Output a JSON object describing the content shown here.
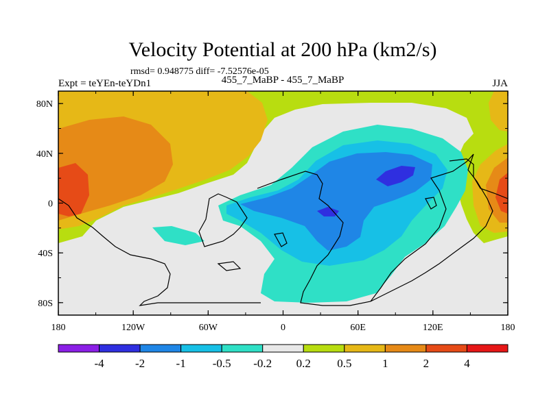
{
  "chart_data": {
    "type": "heatmap",
    "title": "Velocity Potential at 200 hPa (km2/s)",
    "stats_line": "rmsd= 0.948775  diff= -7.52576e-05",
    "left_label": "Expt = teYEn-teYDn1",
    "center_label": "455_7_MaBP - 455_7_MaBP",
    "right_label": "JJA",
    "x_ticks": [
      "180",
      "120W",
      "60W",
      "0",
      "60E",
      "120E",
      "180"
    ],
    "y_ticks": [
      "80N",
      "40N",
      "0",
      "40S",
      "80S"
    ],
    "xlim": [
      -180,
      180
    ],
    "ylim": [
      -90,
      90
    ],
    "colorbar": {
      "levels": [
        "-4",
        "-2",
        "-1",
        "-0.5",
        "-0.2",
        "0.2",
        "0.5",
        "1",
        "2",
        "4"
      ],
      "colors": [
        "#8b1fe6",
        "#2f2fe0",
        "#1f86e6",
        "#17c0e6",
        "#2fe0c6",
        "#e8e8e8",
        "#b8dd10",
        "#e6b817",
        "#e68a17",
        "#e64b17",
        "#e61717"
      ]
    },
    "colors": {
      "neutral": "#e8e8e8",
      "pos_02_05": "#b8dd10",
      "pos_05_1": "#e6b817",
      "pos_1_2": "#e68a17",
      "pos_2_4": "#e64b17",
      "neg_02_05": "#2fe0c6",
      "neg_05_1": "#17c0e6",
      "neg_1_2": "#1f86e6",
      "neg_2_4": "#2f2fe0"
    }
  }
}
